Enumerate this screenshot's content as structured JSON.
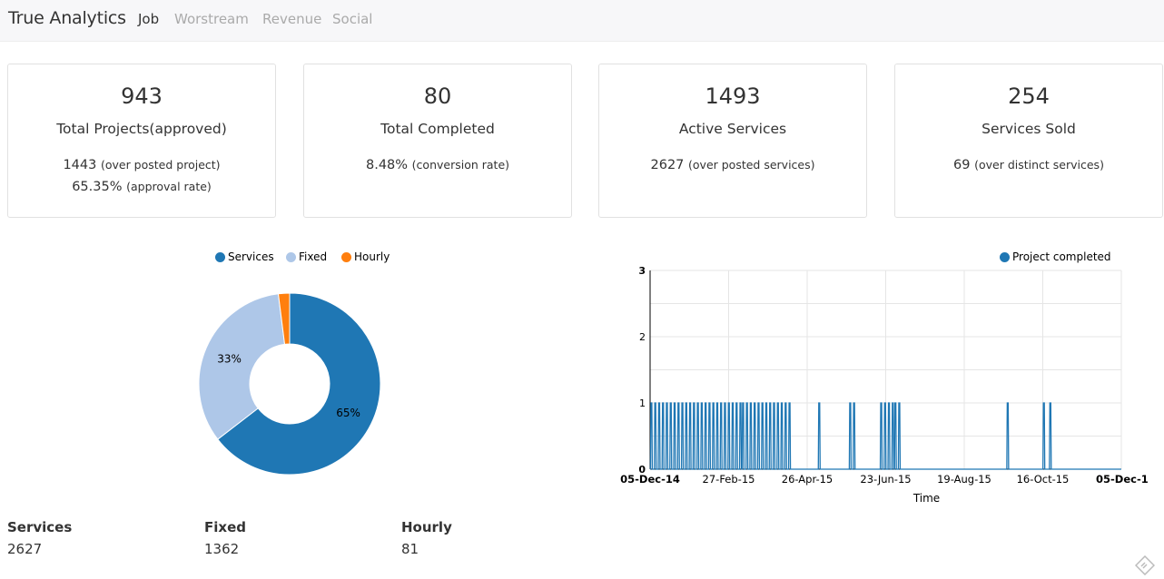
{
  "navbar": {
    "brand": "True Analytics",
    "links": [
      {
        "label": "Job",
        "active": true
      },
      {
        "label": "Worstream",
        "active": false
      },
      {
        "label": "Revenue",
        "active": false
      },
      {
        "label": "Social",
        "active": false
      }
    ]
  },
  "cards": [
    {
      "value": "943",
      "title": "Total Projects(approved)",
      "lines": [
        {
          "num": "1443",
          "note": "(over posted project)"
        },
        {
          "num": "65.35%",
          "note": "(approval rate)"
        }
      ]
    },
    {
      "value": "80",
      "title": "Total Completed",
      "lines": [
        {
          "num": "8.48%",
          "note": "(conversion rate)"
        }
      ]
    },
    {
      "value": "1493",
      "title": "Active Services",
      "lines": [
        {
          "num": "2627",
          "note": "(over posted services)"
        }
      ]
    },
    {
      "value": "254",
      "title": "Services Sold",
      "lines": [
        {
          "num": "69",
          "note": "(over distinct services)"
        }
      ]
    }
  ],
  "stats": [
    {
      "label": "Services",
      "value": "2627"
    },
    {
      "label": "Fixed",
      "value": "1362"
    },
    {
      "label": "Hourly",
      "value": "81"
    }
  ],
  "chart_data": [
    {
      "type": "pie",
      "donut": true,
      "legend": "top",
      "labels": [
        "Services",
        "Fixed",
        "Hourly"
      ],
      "values": [
        2627,
        1362,
        81
      ],
      "slice_labels": [
        "65%",
        "33%",
        ""
      ],
      "colors": [
        "#1f77b4",
        "#aec7e8",
        "#ff7f0e"
      ]
    },
    {
      "type": "line",
      "legend": "top-right",
      "series": [
        {
          "name": "Project completed",
          "color": "#1f77b4"
        }
      ],
      "xlabel": "Time",
      "x_ticks": [
        "05-Dec-14",
        "27-Feb-15",
        "26-Apr-15",
        "23-Jun-15",
        "19-Aug-15",
        "16-Oct-15",
        "05-Dec-1"
      ],
      "y_ticks": [
        "0",
        "1",
        "2",
        "3"
      ],
      "ylim": [
        0,
        3
      ],
      "grid": true,
      "x_range_days": [
        0,
        365
      ],
      "events": [
        {
          "day": 1,
          "value": 1
        },
        {
          "day": 4,
          "value": 1
        },
        {
          "day": 7,
          "value": 1
        },
        {
          "day": 10,
          "value": 1
        },
        {
          "day": 13,
          "value": 1
        },
        {
          "day": 16,
          "value": 1
        },
        {
          "day": 19,
          "value": 1
        },
        {
          "day": 22,
          "value": 1
        },
        {
          "day": 25,
          "value": 1
        },
        {
          "day": 28,
          "value": 1
        },
        {
          "day": 31,
          "value": 1
        },
        {
          "day": 34,
          "value": 1
        },
        {
          "day": 37,
          "value": 1
        },
        {
          "day": 40,
          "value": 1
        },
        {
          "day": 43,
          "value": 1
        },
        {
          "day": 46,
          "value": 1
        },
        {
          "day": 49,
          "value": 1
        },
        {
          "day": 52,
          "value": 1
        },
        {
          "day": 55,
          "value": 1
        },
        {
          "day": 58,
          "value": 1
        },
        {
          "day": 61,
          "value": 1
        },
        {
          "day": 64,
          "value": 1
        },
        {
          "day": 67,
          "value": 1
        },
        {
          "day": 70,
          "value": 1
        },
        {
          "day": 72,
          "value": 1
        },
        {
          "day": 75,
          "value": 1
        },
        {
          "day": 78,
          "value": 1
        },
        {
          "day": 81,
          "value": 1
        },
        {
          "day": 84,
          "value": 1
        },
        {
          "day": 87,
          "value": 1
        },
        {
          "day": 90,
          "value": 1
        },
        {
          "day": 93,
          "value": 1
        },
        {
          "day": 96,
          "value": 1
        },
        {
          "day": 99,
          "value": 1
        },
        {
          "day": 102,
          "value": 1
        },
        {
          "day": 105,
          "value": 1
        },
        {
          "day": 108,
          "value": 1
        },
        {
          "day": 131,
          "value": 1
        },
        {
          "day": 155,
          "value": 1
        },
        {
          "day": 158,
          "value": 1
        },
        {
          "day": 179,
          "value": 1
        },
        {
          "day": 182,
          "value": 1
        },
        {
          "day": 185,
          "value": 1
        },
        {
          "day": 188,
          "value": 1
        },
        {
          "day": 190,
          "value": 1
        },
        {
          "day": 193,
          "value": 1
        },
        {
          "day": 277,
          "value": 1
        },
        {
          "day": 305,
          "value": 1
        },
        {
          "day": 310,
          "value": 1
        }
      ]
    }
  ]
}
